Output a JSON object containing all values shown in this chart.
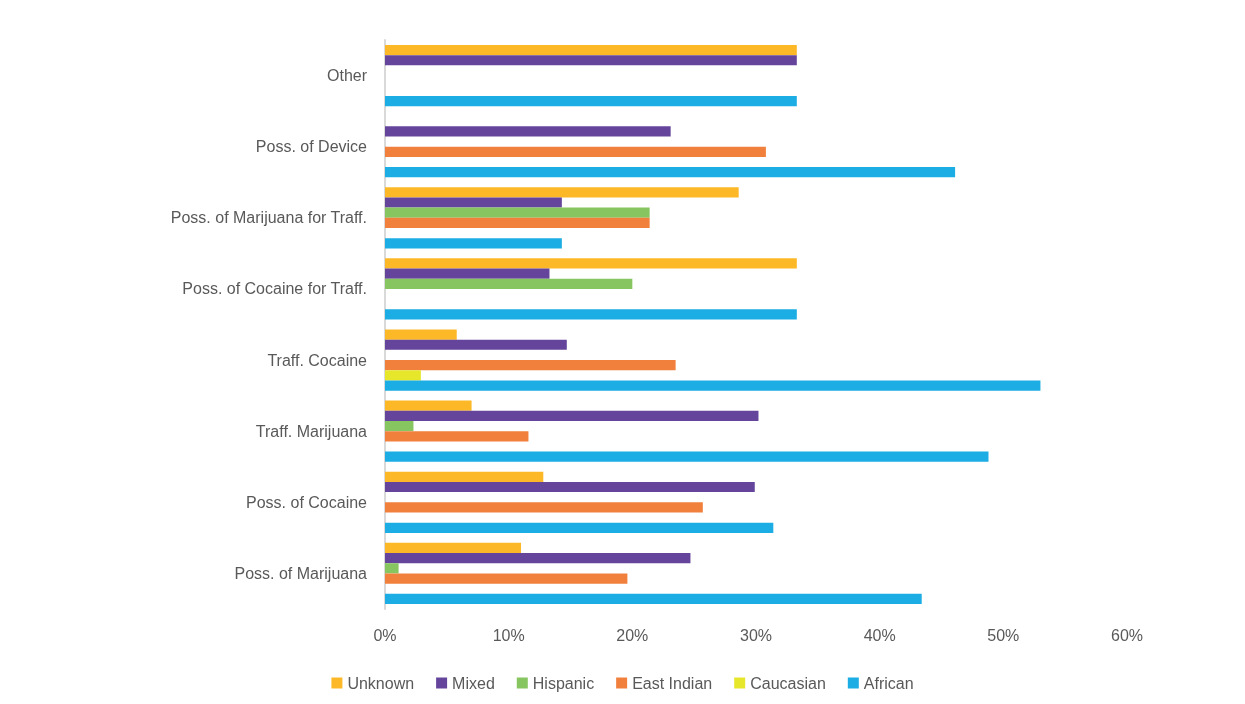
{
  "chart_data": {
    "type": "bar",
    "orientation": "horizontal",
    "categories": [
      "Other",
      "Poss. of Device",
      "Poss. of Marijuana for Traff.",
      "Poss. of Cocaine for Traff.",
      "Traff. Cocaine",
      "Traff. Marijuana",
      "Poss. of Cocaine",
      "Poss. of Marijuana"
    ],
    "series": [
      {
        "name": "Unknown",
        "color": "#fdb827",
        "values": [
          33.3,
          null,
          28.6,
          33.3,
          5.8,
          7.0,
          12.8,
          11.0
        ]
      },
      {
        "name": "Mixed",
        "color": "#65459b",
        "values": [
          33.3,
          23.1,
          14.3,
          13.3,
          14.7,
          30.2,
          29.9,
          24.7
        ]
      },
      {
        "name": "Hispanic",
        "color": "#86c55f",
        "values": [
          null,
          null,
          21.4,
          20.0,
          null,
          2.3,
          null,
          1.1
        ]
      },
      {
        "name": "East Indian",
        "color": "#f0803c",
        "values": [
          null,
          30.8,
          21.4,
          null,
          23.5,
          11.6,
          25.7,
          19.6
        ]
      },
      {
        "name": "Caucasian",
        "color": "#e6e62a",
        "values": [
          null,
          null,
          null,
          null,
          2.9,
          null,
          null,
          null
        ]
      },
      {
        "name": "African",
        "color": "#1bade3",
        "values": [
          33.3,
          46.1,
          14.3,
          33.3,
          53.0,
          48.8,
          31.4,
          43.4
        ]
      }
    ],
    "xlim": [
      0,
      60
    ],
    "xticks": [
      {
        "value": 0,
        "label": "0%"
      },
      {
        "value": 10,
        "label": "10%"
      },
      {
        "value": 20,
        "label": "20%"
      },
      {
        "value": 30,
        "label": "30%"
      },
      {
        "value": 40,
        "label": "40%"
      },
      {
        "value": 50,
        "label": "50%"
      },
      {
        "value": 60,
        "label": "60%"
      }
    ],
    "grid": false,
    "legend": "bottom"
  }
}
